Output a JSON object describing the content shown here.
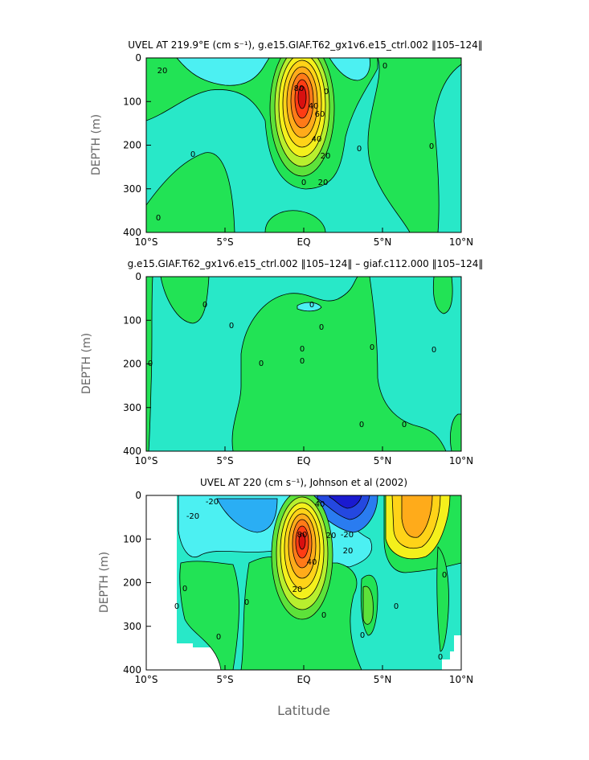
{
  "chart_data": [
    {
      "type": "contour",
      "title": "UVEL AT 219.9°E (cm s⁻¹), g.e15.GIAF.T62_gx1v6.e15_ctrl.002 ‖105–124‖",
      "xlabel": "",
      "ylabel": "DEPTH (m)",
      "x_ticks": [
        "10°S",
        "5°S",
        "EQ",
        "5°N",
        "10°N"
      ],
      "y_ticks": [
        "0",
        "100",
        "200",
        "300",
        "400"
      ],
      "xlim": [
        -10,
        10
      ],
      "ylim": [
        0,
        400
      ],
      "contour_labels": [
        "20",
        "0",
        "0",
        "80",
        "40",
        "60",
        "20",
        "0",
        "40",
        "20",
        "0",
        "0",
        "0",
        "0"
      ]
    },
    {
      "type": "contour",
      "title": "g.e15.GIAF.T62_gx1v6.e15_ctrl.002 ‖105–124‖ – giaf.c112.000 ‖105–124‖",
      "xlabel": "",
      "ylabel": "DEPTH (m)",
      "x_ticks": [
        "10°S",
        "5°S",
        "EQ",
        "5°N",
        "10°N"
      ],
      "y_ticks": [
        "0",
        "100",
        "200",
        "300",
        "400"
      ],
      "xlim": [
        -10,
        10
      ],
      "ylim": [
        0,
        400
      ],
      "contour_labels": [
        "0",
        "0",
        "0",
        "0",
        "0",
        "0",
        "0",
        "0",
        "0",
        "0",
        "0",
        "0"
      ]
    },
    {
      "type": "contour",
      "title": "UVEL AT 220 (cm s⁻¹), Johnson et al (2002)",
      "xlabel": "Latitude",
      "ylabel": "DEPTH (m)",
      "x_ticks": [
        "10°S",
        "5°S",
        "EQ",
        "5°N",
        "10°N"
      ],
      "y_ticks": [
        "0",
        "100",
        "200",
        "300",
        "400"
      ],
      "xlim": [
        -10,
        10
      ],
      "ylim": [
        0,
        400
      ],
      "contour_labels": [
        "-20",
        "-20",
        "40",
        "80",
        "-20",
        "20",
        "40",
        "20",
        "20",
        "0",
        "0",
        "0",
        "0",
        "0",
        "0",
        "0",
        "0",
        "0"
      ]
    }
  ]
}
